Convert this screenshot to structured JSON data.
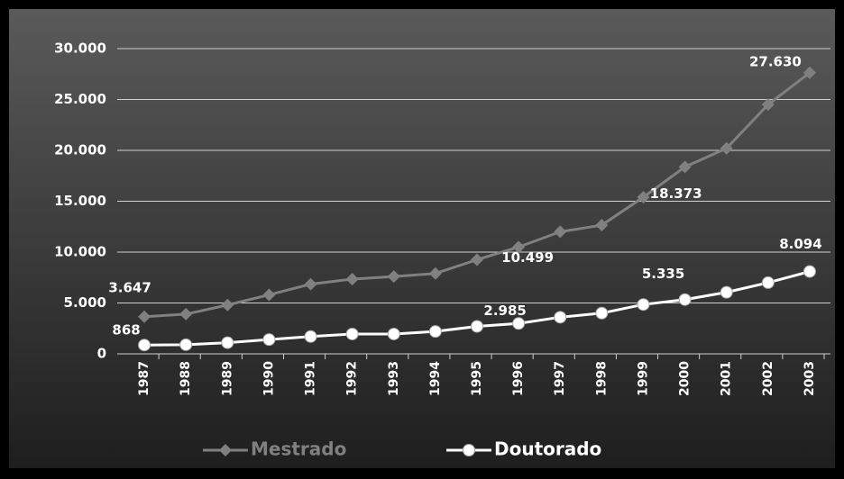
{
  "chart_data": {
    "type": "line",
    "categories": [
      "1987",
      "1988",
      "1989",
      "1990",
      "1991",
      "1992",
      "1993",
      "1994",
      "1995",
      "1996",
      "1997",
      "1998",
      "1999",
      "2000",
      "2001",
      "2002",
      "2003"
    ],
    "series": [
      {
        "name": "Mestrado",
        "color": "#808080",
        "marker": "diamond",
        "values": [
          3647,
          3900,
          4800,
          5800,
          6850,
          7350,
          7600,
          7900,
          9250,
          10499,
          12000,
          12650,
          15400,
          18373,
          20200,
          24500,
          27630
        ],
        "value_labels": [
          "3.647",
          null,
          null,
          null,
          null,
          null,
          null,
          null,
          null,
          "10.499",
          null,
          null,
          null,
          "18.373",
          null,
          null,
          "27.630"
        ]
      },
      {
        "name": "Doutorado",
        "color": "#ffffff",
        "marker": "circle",
        "values": [
          868,
          900,
          1100,
          1400,
          1700,
          1950,
          1950,
          2200,
          2700,
          2985,
          3600,
          4000,
          4850,
          5335,
          6050,
          7000,
          8094
        ],
        "value_labels": [
          "868",
          null,
          null,
          null,
          null,
          null,
          null,
          null,
          null,
          "2.985",
          null,
          null,
          null,
          "5.335",
          null,
          null,
          "8.094"
        ]
      }
    ],
    "ylim": [
      0,
      30000
    ],
    "yticks": [
      0,
      {
        "value": 5000,
        "label": "5.000"
      },
      {
        "value": 10000,
        "label": "10.000"
      },
      {
        "value": 15000,
        "label": "15.000"
      },
      {
        "value": 20000,
        "label": "20.000"
      },
      {
        "value": 25000,
        "label": "25.000"
      },
      {
        "value": 30000,
        "label": "30.000"
      }
    ],
    "grid": true,
    "legend": "bottom"
  }
}
